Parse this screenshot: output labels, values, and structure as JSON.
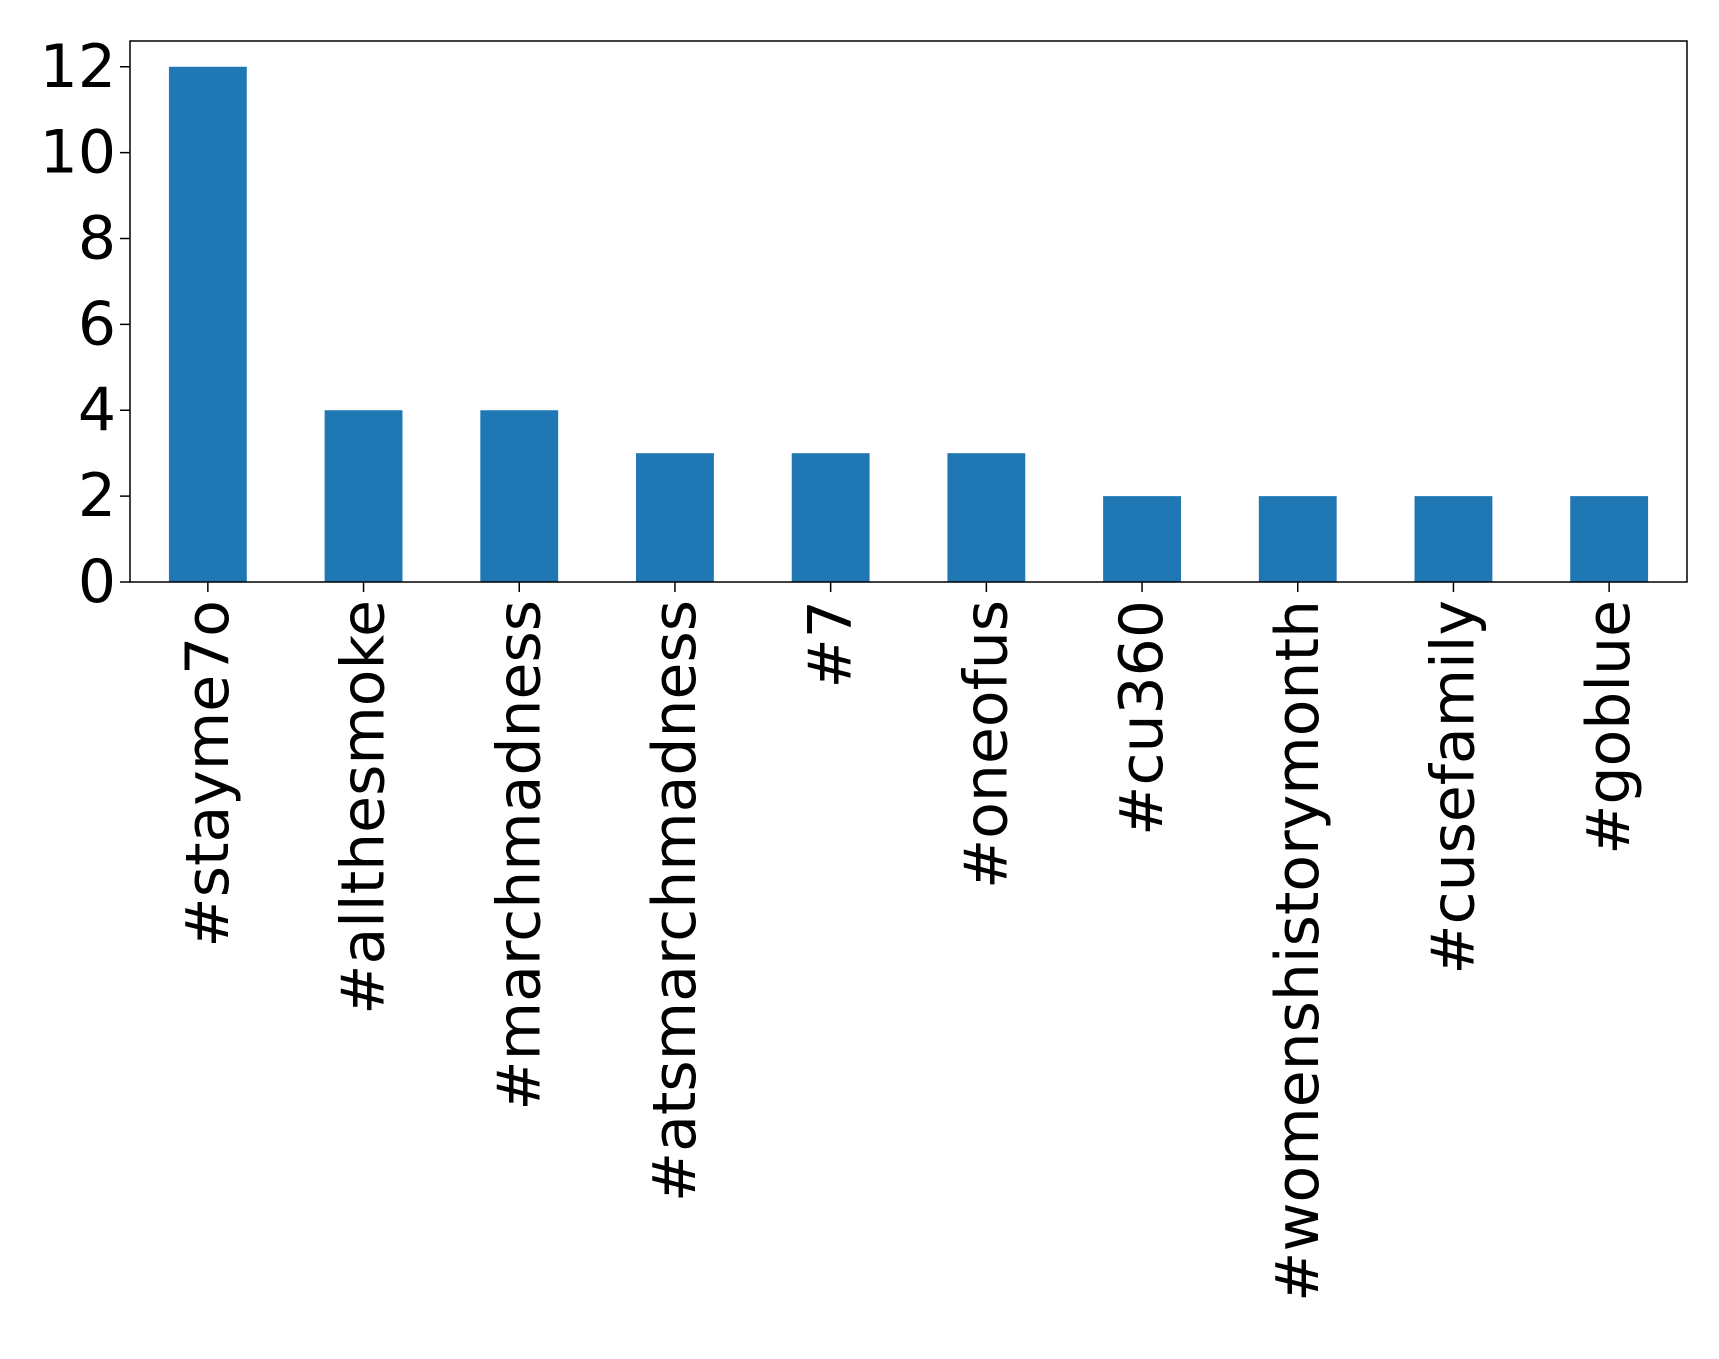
{
  "chart_data": {
    "type": "bar",
    "title": "",
    "xlabel": "",
    "ylabel": "",
    "categories": [
      "#stayme7o",
      "#allthesmoke",
      "#marchmadness",
      "#atsmarchmadness",
      "#7",
      "#oneofus",
      "#cu360",
      "#womenshistorymonth",
      "#cusefamily",
      "#goblue"
    ],
    "values": [
      12,
      4,
      4,
      3,
      3,
      3,
      2,
      2,
      2,
      2
    ],
    "ylim": [
      0,
      12.6
    ],
    "yticks": [
      0,
      2,
      4,
      6,
      8,
      10,
      12
    ],
    "grid": false,
    "legend": "none",
    "bar_color": "#1f77b4",
    "x_tick_rotation": "vertical"
  }
}
